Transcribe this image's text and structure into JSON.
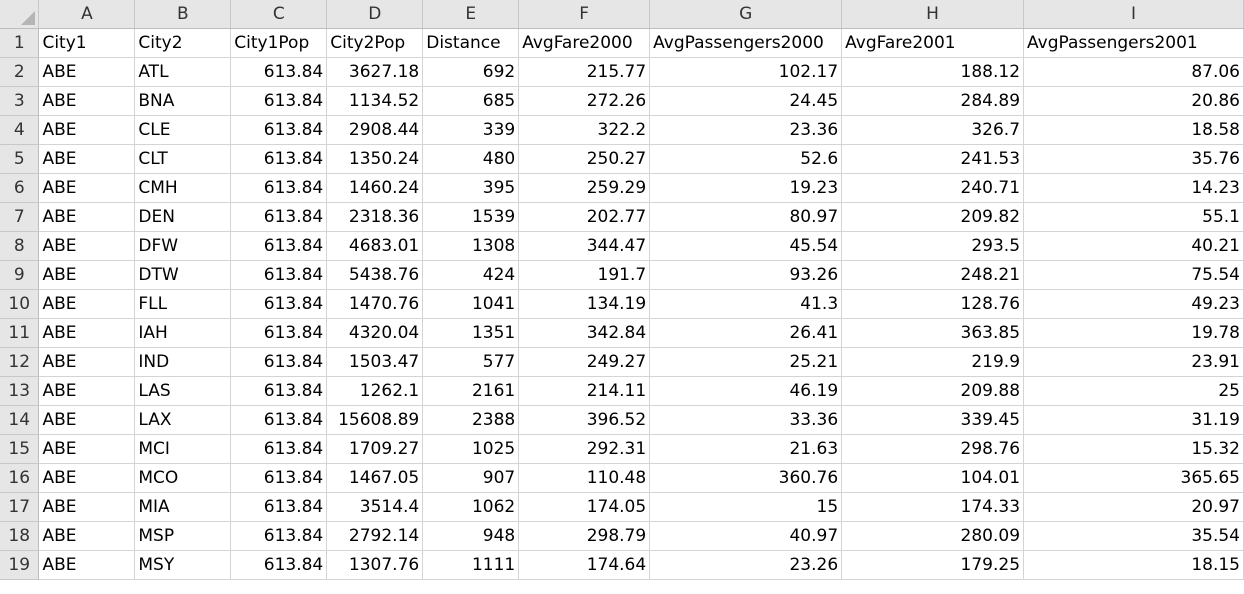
{
  "sheet": {
    "column_letters": [
      "A",
      "B",
      "C",
      "D",
      "E",
      "F",
      "G",
      "H",
      "I"
    ],
    "row_numbers": [
      "1",
      "2",
      "3",
      "4",
      "5",
      "6",
      "7",
      "8",
      "9",
      "10",
      "11",
      "12",
      "13",
      "14",
      "15",
      "16",
      "17",
      "18",
      "19"
    ],
    "header": [
      "City1",
      "City2",
      "City1Pop",
      "City2Pop",
      "Distance",
      "AvgFare2000",
      "AvgPassengers2000",
      "AvgFare2001",
      "AvgPassengers2001"
    ],
    "rows": [
      [
        "ABE",
        "ATL",
        "613.84",
        "3627.18",
        "692",
        "215.77",
        "102.17",
        "188.12",
        "87.06"
      ],
      [
        "ABE",
        "BNA",
        "613.84",
        "1134.52",
        "685",
        "272.26",
        "24.45",
        "284.89",
        "20.86"
      ],
      [
        "ABE",
        "CLE",
        "613.84",
        "2908.44",
        "339",
        "322.2",
        "23.36",
        "326.7",
        "18.58"
      ],
      [
        "ABE",
        "CLT",
        "613.84",
        "1350.24",
        "480",
        "250.27",
        "52.6",
        "241.53",
        "35.76"
      ],
      [
        "ABE",
        "CMH",
        "613.84",
        "1460.24",
        "395",
        "259.29",
        "19.23",
        "240.71",
        "14.23"
      ],
      [
        "ABE",
        "DEN",
        "613.84",
        "2318.36",
        "1539",
        "202.77",
        "80.97",
        "209.82",
        "55.1"
      ],
      [
        "ABE",
        "DFW",
        "613.84",
        "4683.01",
        "1308",
        "344.47",
        "45.54",
        "293.5",
        "40.21"
      ],
      [
        "ABE",
        "DTW",
        "613.84",
        "5438.76",
        "424",
        "191.7",
        "93.26",
        "248.21",
        "75.54"
      ],
      [
        "ABE",
        "FLL",
        "613.84",
        "1470.76",
        "1041",
        "134.19",
        "41.3",
        "128.76",
        "49.23"
      ],
      [
        "ABE",
        "IAH",
        "613.84",
        "4320.04",
        "1351",
        "342.84",
        "26.41",
        "363.85",
        "19.78"
      ],
      [
        "ABE",
        "IND",
        "613.84",
        "1503.47",
        "577",
        "249.27",
        "25.21",
        "219.9",
        "23.91"
      ],
      [
        "ABE",
        "LAS",
        "613.84",
        "1262.1",
        "2161",
        "214.11",
        "46.19",
        "209.88",
        "25"
      ],
      [
        "ABE",
        "LAX",
        "613.84",
        "15608.89",
        "2388",
        "396.52",
        "33.36",
        "339.45",
        "31.19"
      ],
      [
        "ABE",
        "MCI",
        "613.84",
        "1709.27",
        "1025",
        "292.31",
        "21.63",
        "298.76",
        "15.32"
      ],
      [
        "ABE",
        "MCO",
        "613.84",
        "1467.05",
        "907",
        "110.48",
        "360.76",
        "104.01",
        "365.65"
      ],
      [
        "ABE",
        "MIA",
        "613.84",
        "3514.4",
        "1062",
        "174.05",
        "15",
        "174.33",
        "20.97"
      ],
      [
        "ABE",
        "MSP",
        "613.84",
        "2792.14",
        "948",
        "298.79",
        "40.97",
        "280.09",
        "35.54"
      ],
      [
        "ABE",
        "MSY",
        "613.84",
        "1307.76",
        "1111",
        "174.64",
        "23.26",
        "179.25",
        "18.15"
      ]
    ]
  }
}
